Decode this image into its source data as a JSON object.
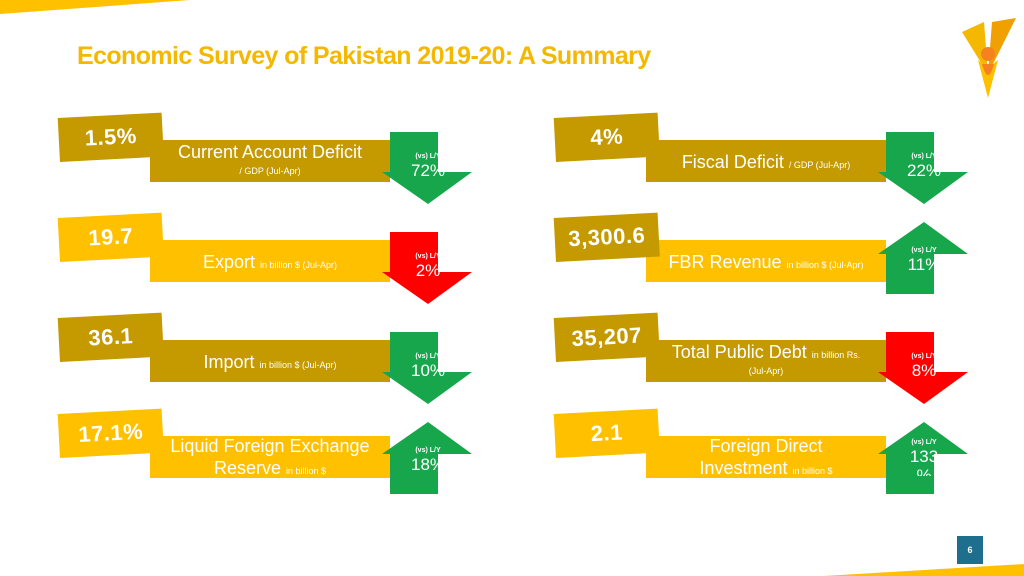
{
  "slide": {
    "title": "Economic Survey of Pakistan 2019-20:  A Summary",
    "page_number": "6"
  },
  "colors": {
    "title": "#F5B800",
    "dark_gold": "#C49A00",
    "yellow": "#FFC000",
    "green": "#17A64B",
    "red": "#FF0000",
    "page_badge": "#1E6E8E"
  },
  "cards": [
    {
      "value": "1.5%",
      "label": "Current Account Deficit",
      "sub": "/ GDP  (Jul-Apr)",
      "badge": "(vs) L/Y",
      "change": "72%",
      "direction": "down",
      "change_color": "green",
      "tone": "dark"
    },
    {
      "value": "4%",
      "label": "Fiscal Deficit",
      "sub": "/ GDP  (Jul-Apr)",
      "badge": "(vs) L/Y",
      "change": "22%",
      "direction": "down",
      "change_color": "green",
      "tone": "dark"
    },
    {
      "value": "19.7",
      "label": "Export",
      "sub": "in billion $ (Jul-Apr)",
      "badge": "(vs) L/Y",
      "change": "2%",
      "direction": "down",
      "change_color": "red",
      "tone": "light"
    },
    {
      "value": "3,300.6",
      "label": "FBR Revenue",
      "sub": "in billion $ (Jul-Apr)",
      "badge": "(vs) L/Y",
      "change": "11%",
      "direction": "up",
      "change_color": "green",
      "tone": "dark"
    },
    {
      "value": "36.1",
      "label": "Import",
      "sub": "in billion $ (Jul-Apr)",
      "badge": "(vs) L/Y",
      "change": "10%",
      "direction": "down",
      "change_color": "green",
      "tone": "dark"
    },
    {
      "value": "35,207",
      "label": "Total Public Debt",
      "sub": "in billion Rs.",
      "sub2": "(Jul-Apr)",
      "badge": "(vs) L/Y",
      "change": "8%",
      "direction": "down",
      "change_color": "red",
      "tone": "dark"
    },
    {
      "value": "17.1%",
      "label": "Liquid Foreign Exchange",
      "label2": "Reserve",
      "sub": "in billion $",
      "badge": "(vs) L/Y",
      "change": "18%",
      "direction": "up",
      "change_color": "green",
      "tone": "light"
    },
    {
      "value": "2.1",
      "label": "Foreign Direct",
      "label2": "Investment",
      "sub": "in billion $",
      "badge": "(vs) L/Y",
      "change": "133",
      "change2": "%",
      "direction": "up",
      "change_color": "green",
      "tone": "light"
    }
  ]
}
